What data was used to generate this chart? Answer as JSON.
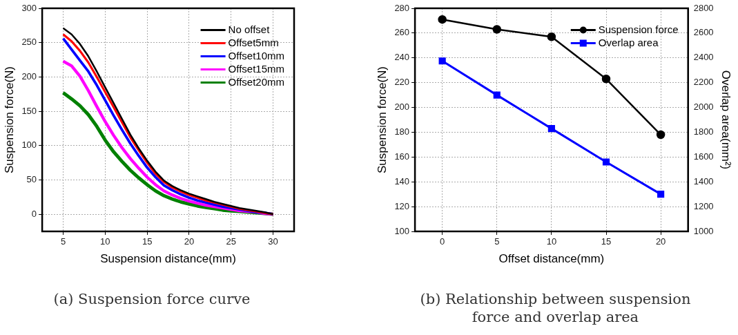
{
  "chart_data": [
    {
      "type": "line",
      "xlabel": "Suspension distance(mm)",
      "ylabel": "Suspension force(N)",
      "annotations": [
        "(a) Suspension force curve"
      ],
      "x": [
        5,
        6,
        7,
        8,
        9,
        10,
        11,
        12,
        13,
        14,
        15,
        16,
        17,
        18,
        19,
        20,
        21,
        22,
        23,
        24,
        25,
        26,
        27,
        28,
        29,
        30
      ],
      "xlim": [
        2.5,
        32.5
      ],
      "xticks": [
        5,
        10,
        15,
        20,
        25,
        30
      ],
      "ylim": [
        -25,
        300
      ],
      "yticks": [
        0,
        50,
        100,
        150,
        200,
        250,
        300
      ],
      "grid": true,
      "legend": "top right",
      "marker": "none",
      "series": [
        {
          "name": "No offset",
          "color": "#000000",
          "values": [
            271,
            262,
            248,
            230,
            208,
            185,
            162,
            139,
            116,
            96,
            78,
            62,
            49,
            41,
            35,
            30,
            26,
            22,
            18,
            15,
            12,
            9,
            7,
            5,
            3,
            0
          ]
        },
        {
          "name": "Offset5mm",
          "color": "#ff0000",
          "values": [
            262,
            252,
            238,
            221,
            200,
            178,
            156,
            134,
            112,
            93,
            75,
            59,
            47,
            39,
            33,
            28,
            24,
            20,
            17,
            14,
            11,
            8,
            6,
            4,
            2,
            0
          ]
        },
        {
          "name": "Offset10mm",
          "color": "#0000ff",
          "values": [
            256,
            240,
            224,
            208,
            188,
            166,
            144,
            123,
            103,
            85,
            68,
            54,
            42,
            35,
            29,
            24,
            20,
            17,
            14,
            11,
            9,
            7,
            5,
            3,
            2,
            0
          ]
        },
        {
          "name": "Offset15mm",
          "color": "#ff00ff",
          "values": [
            223,
            216,
            201,
            180,
            157,
            135,
            115,
            97,
            81,
            67,
            54,
            43,
            34,
            28,
            23,
            19,
            16,
            13,
            11,
            9,
            7,
            5,
            4,
            3,
            1,
            0
          ]
        },
        {
          "name": "Offset20mm",
          "color": "#008000",
          "values": [
            177,
            168,
            158,
            145,
            128,
            108,
            91,
            77,
            64,
            53,
            43,
            34,
            27,
            22,
            18,
            15,
            12,
            10,
            8,
            6,
            5,
            4,
            3,
            2,
            1,
            0
          ]
        }
      ]
    },
    {
      "type": "line",
      "xlabel": "Offset distance(mm)",
      "ylabel": "Suspension force(N)",
      "y2label": "Overlap area(mm²)",
      "annotations": [
        "(b) Relationship between suspension force and overlap area"
      ],
      "x": [
        0,
        5,
        10,
        15,
        20
      ],
      "xlim": [
        -2.5,
        22.5
      ],
      "xticks": [
        0,
        5,
        10,
        15,
        20
      ],
      "ylim": [
        100,
        280
      ],
      "yticks": [
        100,
        120,
        140,
        160,
        180,
        200,
        220,
        240,
        260,
        280
      ],
      "y2lim": [
        1000,
        2800
      ],
      "y2ticks": [
        1000,
        1200,
        1400,
        1600,
        1800,
        2000,
        2200,
        2400,
        2600,
        2800
      ],
      "grid": true,
      "legend": "top right",
      "series": [
        {
          "name": "Suspension force",
          "color": "#000000",
          "marker": "circle",
          "values": [
            271,
            263,
            257,
            223,
            178
          ]
        },
        {
          "name": "Overlap area",
          "color": "#0000ff",
          "marker": "square",
          "axis": "y2",
          "values": [
            2375,
            2100,
            1830,
            1560,
            1300
          ]
        }
      ]
    }
  ]
}
